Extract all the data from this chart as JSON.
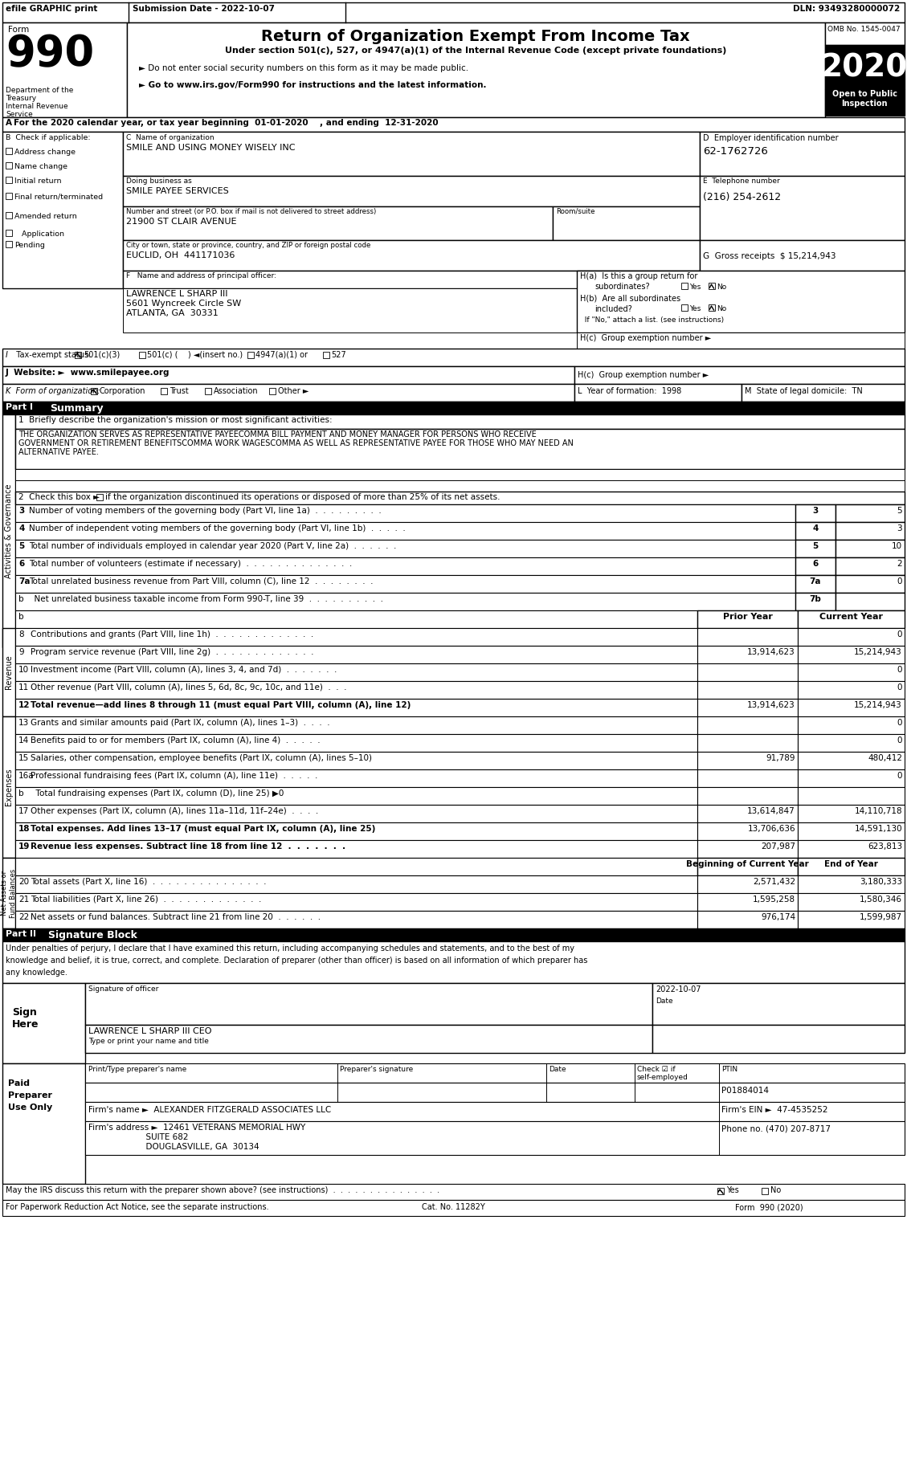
{
  "title": "Return of Organization Exempt From Income Tax",
  "form_number": "990",
  "year": "2020",
  "omb": "OMB No. 1545-0047",
  "efile_text": "efile GRAPHIC print",
  "submission_date": "Submission Date - 2022-10-07",
  "dln": "DLN: 93493280000072",
  "org_name": "SMILE AND USING MONEY WISELY INC",
  "dba": "SMILE PAYEE SERVICES",
  "address": "21900 ST CLAIR AVENUE",
  "city_state_zip": "EUCLID, OH  441171036",
  "ein": "62-1762726",
  "phone": "(216) 254-2612",
  "gross_receipts": "$ 15,214,943",
  "principal_officer": "LAWRENCE L SHARP III",
  "officer_address1": "5601 Wyncreek Circle SW",
  "officer_address2": "ATLANTA, GA  30331",
  "website": "www.smilepayee.org",
  "year_formation": "1998",
  "state_domicile": "TN",
  "mission1": "THE ORGANIZATION SERVES AS REPRESENTATIVE PAYEECOMMA BILL PAYMENT AND MONEY MANAGER FOR PERSONS WHO RECEIVE",
  "mission2": "GOVERNMENT OR RETIREMENT BENEFITSCOMMA WORK WAGESCOMMA AS WELL AS REPRESENTATIVE PAYEE FOR THOSE WHO MAY NEED AN",
  "mission3": "ALTERNATIVE PAYEE.",
  "line3_val": "5",
  "line4_val": "3",
  "line5_val": "10",
  "line6_val": "2",
  "line7a_val": "0",
  "line7b_val": "",
  "prior_year_8": "",
  "current_year_8": "0",
  "prior_year_9": "13,914,623",
  "current_year_9": "15,214,943",
  "prior_year_10": "",
  "current_year_10": "0",
  "prior_year_11": "",
  "current_year_11": "0",
  "prior_year_12": "13,914,623",
  "current_year_12": "15,214,943",
  "prior_year_13": "",
  "current_year_13": "0",
  "prior_year_14": "",
  "current_year_14": "0",
  "prior_year_15": "91,789",
  "current_year_15": "480,412",
  "prior_year_16a": "",
  "current_year_16a": "0",
  "prior_year_16b": "",
  "current_year_16b": "",
  "prior_year_17": "13,614,847",
  "current_year_17": "14,110,718",
  "prior_year_18": "13,706,636",
  "current_year_18": "14,591,130",
  "prior_year_19": "207,987",
  "current_year_19": "623,813",
  "boc_20": "2,571,432",
  "eoy_20": "3,180,333",
  "boc_21": "1,595,258",
  "eoy_21": "1,580,346",
  "boc_22": "976,174",
  "eoy_22": "1,599,987",
  "signer_name": "LAWRENCE L SHARP III CEO",
  "sign_date": "2022-10-07",
  "preparer_name": "ALEXANDER FITZGERALD ASSOCIATES LLC",
  "preparer_ptin": "P01884014",
  "preparer_ein": "47-4535252",
  "preparer_addr1": "12461 VETERANS MEMORIAL HWY",
  "preparer_addr2": "SUITE 682",
  "preparer_addr3": "DOUGLASVILLE, GA  30134",
  "preparer_phone": "(470) 207-8717",
  "cat_no": "Cat. No. 11282Y",
  "under_section": "Under section 501(c), 527, or 4947(a)(1) of the Internal Revenue Code (except private foundations)",
  "do_not_enter": "► Do not enter social security numbers on this form as it may be made public.",
  "go_to": "► Go to www.irs.gov/Form990 for instructions and the latest information."
}
